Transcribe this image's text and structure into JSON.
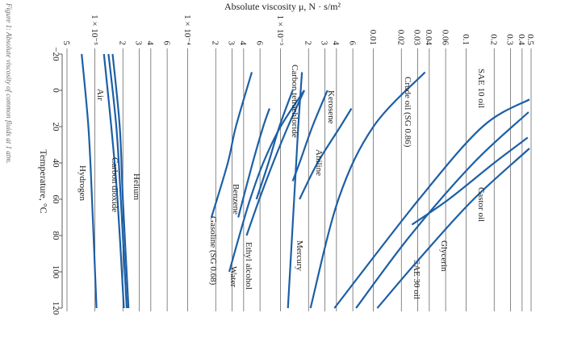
{
  "caption": "Figure 1: Absolute viscosity of common fluids at 1 atm.",
  "chart_data": {
    "type": "line",
    "title": "Absolute viscosity μ, N · s/m²",
    "x_label": "Temperature, °C",
    "y_scale": "log",
    "grid": true,
    "color": "#1d5fa6",
    "xlim": [
      -20,
      120
    ],
    "xticks": [
      {
        "value": -20,
        "label": "−20"
      },
      0,
      20,
      40,
      60,
      80,
      100,
      120
    ],
    "ylim": [
      5e-06,
      0.5
    ],
    "yticks": [
      {
        "value": 5e-06,
        "label": "5"
      },
      {
        "value": 1e-05,
        "label": "1 × 10⁻⁵"
      },
      {
        "value": 2e-05,
        "label": "2"
      },
      {
        "value": 3e-05,
        "label": "3"
      },
      {
        "value": 4e-05,
        "label": "4"
      },
      {
        "value": 6e-05,
        "label": "6"
      },
      {
        "value": 0.0001,
        "label": "1 × 10⁻⁴"
      },
      {
        "value": 0.0002,
        "label": "2"
      },
      {
        "value": 0.0003,
        "label": "3"
      },
      {
        "value": 0.0004,
        "label": "4"
      },
      {
        "value": 0.0006,
        "label": "6"
      },
      {
        "value": 0.001,
        "label": "1 × 10⁻³"
      },
      {
        "value": 0.002,
        "label": "2"
      },
      {
        "value": 0.003,
        "label": "3"
      },
      {
        "value": 0.004,
        "label": "4"
      },
      {
        "value": 0.006,
        "label": "6"
      },
      0.01,
      0.02,
      0.03,
      0.04,
      0.06,
      0.1,
      0.2,
      0.3,
      0.4,
      0.5
    ],
    "series": [
      {
        "name": "Hydrogen",
        "x": [
          -20,
          20,
          60,
          120
        ],
        "values": [
          7.2e-06,
          8.5e-06,
          9.3e-06,
          1.04e-05
        ]
      },
      {
        "name": "Carbon dioxide",
        "x": [
          -20,
          20,
          60,
          120
        ],
        "values": [
          1.25e-05,
          1.5e-05,
          1.75e-05,
          2.05e-05
        ]
      },
      {
        "name": "Air",
        "x": [
          -20,
          20,
          60,
          120
        ],
        "values": [
          1.4e-05,
          1.7e-05,
          1.9e-05,
          2.2e-05
        ]
      },
      {
        "name": "Helium",
        "x": [
          -20,
          20,
          60,
          120
        ],
        "values": [
          1.55e-05,
          1.85e-05,
          2e-05,
          2.3e-05
        ]
      },
      {
        "name": "Gasoline (SG 0.68)",
        "x": [
          -10,
          20,
          40,
          70
        ],
        "values": [
          0.00049,
          0.00033,
          0.00027,
          0.00018
        ]
      },
      {
        "name": "Benzene",
        "x": [
          10,
          20,
          40,
          70
        ],
        "values": [
          0.00076,
          0.00065,
          0.0005,
          0.00035
        ]
      },
      {
        "name": "Water",
        "x": [
          0,
          20,
          40,
          60,
          80,
          100
        ],
        "values": [
          0.0018,
          0.001,
          0.00065,
          0.00047,
          0.00036,
          0.00028
        ]
      },
      {
        "name": "Ethyl alcohol",
        "x": [
          0,
          20,
          40,
          60,
          80
        ],
        "values": [
          0.0018,
          0.0012,
          0.00083,
          0.00059,
          0.00043
        ]
      },
      {
        "name": "Carbon tetrachloride",
        "x": [
          0,
          20,
          40,
          60
        ],
        "values": [
          0.00135,
          0.00097,
          0.00074,
          0.00055
        ]
      },
      {
        "name": "Mercury",
        "x": [
          -10,
          20,
          60,
          120
        ],
        "values": [
          0.0017,
          0.00155,
          0.0014,
          0.0012
        ]
      },
      {
        "name": "Kerosene",
        "x": [
          0,
          20,
          40,
          50
        ],
        "values": [
          0.0032,
          0.0022,
          0.0016,
          0.00135
        ]
      },
      {
        "name": "Aniline",
        "x": [
          10,
          20,
          40,
          60
        ],
        "values": [
          0.0058,
          0.0044,
          0.0025,
          0.0016
        ]
      },
      {
        "name": "Crude oil (SG 0.86)",
        "x": [
          -10,
          20,
          60,
          120
        ],
        "values": [
          0.036,
          0.01,
          0.0042,
          0.0021
        ]
      },
      {
        "name": "SAE 10 oil",
        "x": [
          5,
          20,
          60,
          120
        ],
        "values": [
          0.48,
          0.15,
          0.031,
          0.0038
        ]
      },
      {
        "name": "SAE 30 oil",
        "x": [
          12,
          40,
          80,
          120
        ],
        "values": [
          0.47,
          0.12,
          0.025,
          0.0065
        ]
      },
      {
        "name": "Glycerin",
        "x": [
          26,
          40,
          60,
          74
        ],
        "values": [
          0.46,
          0.2,
          0.065,
          0.026
        ]
      },
      {
        "name": "Castor oil",
        "x": [
          32,
          60,
          90,
          120
        ],
        "values": [
          0.48,
          0.12,
          0.035,
          0.011
        ]
      }
    ]
  }
}
